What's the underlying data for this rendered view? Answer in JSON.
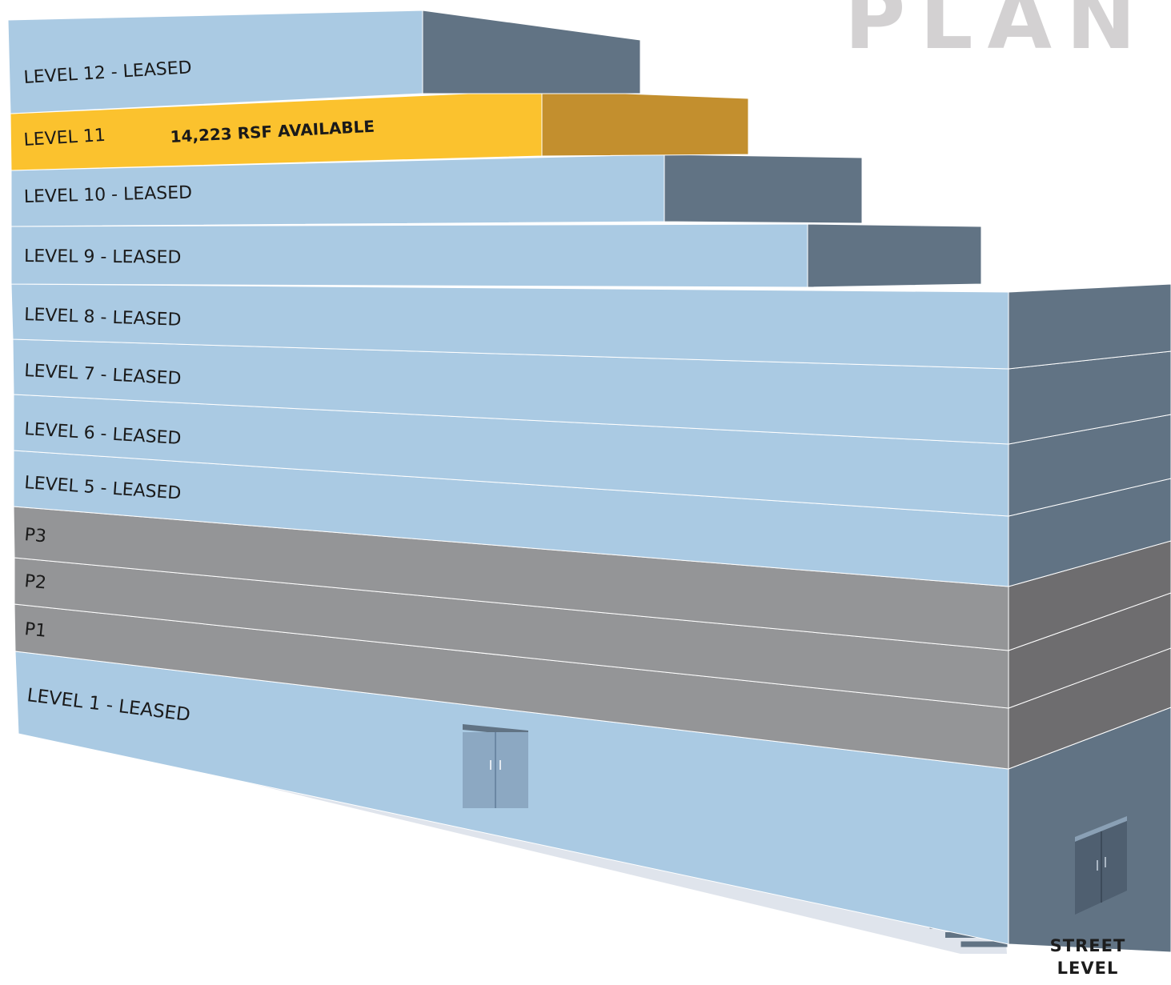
{
  "header": {
    "title": "PLAN"
  },
  "street_label": {
    "line1": "STREET",
    "line2": "LEVEL"
  },
  "colors": {
    "leased_front": "#aacae3",
    "leased_side": "#617384",
    "available_front": "#fbc22e",
    "available_side": "#c38f2e",
    "parking_front": "#949597",
    "parking_side": "#6e6d6f",
    "label_text": "#1a1a1a",
    "door": "#8ca8c2",
    "ground": "#dfe4ec"
  },
  "floors": [
    {
      "id": "level-12",
      "label": "LEVEL 12 - LEASED",
      "status": "leased"
    },
    {
      "id": "level-11",
      "label": "LEVEL 11",
      "status": "available",
      "note": "14,223 RSF AVAILABLE"
    },
    {
      "id": "level-10",
      "label": "LEVEL 10 - LEASED",
      "status": "leased"
    },
    {
      "id": "level-9",
      "label": "LEVEL 9 - LEASED",
      "status": "leased"
    },
    {
      "id": "level-8",
      "label": "LEVEL 8 - LEASED",
      "status": "leased"
    },
    {
      "id": "level-7",
      "label": "LEVEL 7 - LEASED",
      "status": "leased"
    },
    {
      "id": "level-6",
      "label": "LEVEL 6 - LEASED",
      "status": "leased"
    },
    {
      "id": "level-5",
      "label": "LEVEL 5 - LEASED",
      "status": "leased"
    },
    {
      "id": "p3",
      "label": "P3",
      "status": "parking"
    },
    {
      "id": "p2",
      "label": "P2",
      "status": "parking"
    },
    {
      "id": "p1",
      "label": "P1",
      "status": "parking"
    },
    {
      "id": "level-1",
      "label": "LEVEL 1 - LEASED",
      "status": "leased"
    }
  ]
}
